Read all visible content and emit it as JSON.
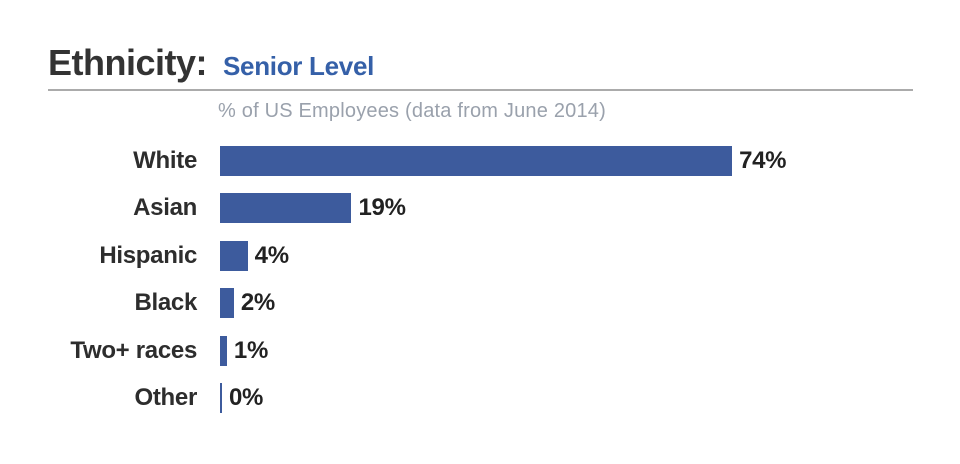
{
  "header": {
    "title": "Ethnicity:",
    "subtitle": "Senior Level"
  },
  "chart_data": {
    "type": "bar",
    "orientation": "horizontal",
    "title": "% of US Employees (data from June 2014)",
    "categories": [
      "White",
      "Asian",
      "Hispanic",
      "Black",
      "Two+ races",
      "Other"
    ],
    "values": [
      74,
      19,
      4,
      2,
      1,
      0
    ],
    "value_labels": [
      "74%",
      "19%",
      "4%",
      "2%",
      "1%",
      "0%"
    ],
    "unit": "%",
    "xlim": [
      0,
      100
    ],
    "grid": false,
    "legend": "none",
    "xlabel": "",
    "ylabel": ""
  },
  "colors": {
    "bar": "#3d5b9d",
    "accent_blue": "#3560a8",
    "title_text": "#333333",
    "label_text": "#2d2d2d",
    "value_text": "#222222",
    "muted_text": "#9aa1ac",
    "divider": "#ababab",
    "background": "#ffffff"
  }
}
